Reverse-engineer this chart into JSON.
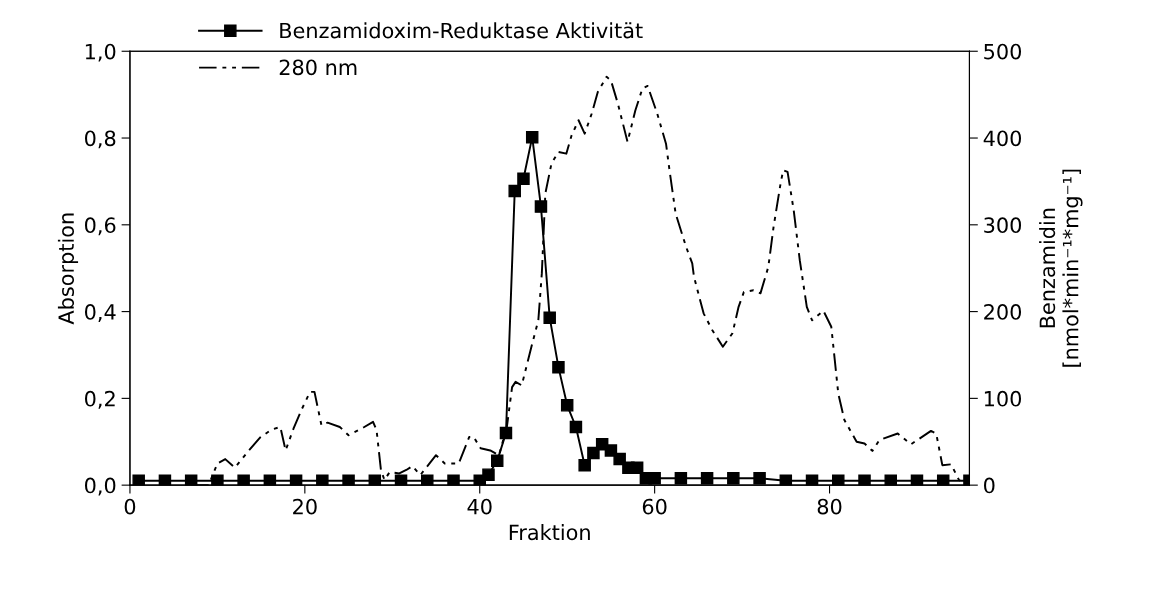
{
  "chart_data": {
    "type": "line",
    "xlabel": "Fraktion",
    "ylabel": "Absorption",
    "y2label": "Benzamidin\n[nmol*min⁻¹*mg⁻¹]",
    "xlim": [
      0,
      96
    ],
    "xticks": [
      0,
      20,
      40,
      60,
      80
    ],
    "ylim": [
      0,
      1
    ],
    "yticks": [
      {
        "value": 0,
        "label": "0,0"
      },
      {
        "value": 0.2,
        "label": "0,2"
      },
      {
        "value": 0.4,
        "label": "0,4"
      },
      {
        "value": 0.6,
        "label": "0,6"
      },
      {
        "value": 0.8,
        "label": "0,8"
      },
      {
        "value": 1,
        "label": "1,0"
      }
    ],
    "y2lim": [
      0,
      500
    ],
    "y2ticks": [
      0,
      100,
      200,
      300,
      400,
      500
    ],
    "grid": false,
    "legend": "top left",
    "series": [
      {
        "name": "Benzamidoxim-Reduktase Aktivität",
        "color": "#000000",
        "axis": "y2",
        "marker": "square",
        "line_style": "solid",
        "x": [
          1,
          4,
          7,
          10,
          13,
          16,
          19,
          22,
          25,
          28,
          31,
          34,
          37,
          40,
          41,
          42,
          43,
          44,
          45,
          46,
          47,
          48,
          49,
          50,
          51,
          52,
          53,
          54,
          55,
          56,
          57,
          58,
          59,
          60,
          63,
          66,
          69,
          72,
          75,
          78,
          81,
          84,
          87,
          90,
          93,
          96
        ],
        "values": [
          5,
          5,
          5,
          5,
          5,
          5,
          5,
          5,
          5,
          5,
          5,
          5,
          5,
          5,
          12,
          28,
          60,
          339,
          353,
          401,
          321,
          193,
          136,
          92,
          67,
          23,
          37,
          47,
          40,
          30,
          20,
          20,
          8,
          8,
          8,
          8,
          8,
          8,
          5,
          5,
          5,
          5,
          5,
          5,
          5,
          5
        ]
      },
      {
        "name": "280 nm",
        "color": "#000000",
        "axis": "y",
        "marker": "none",
        "line_style": "dashed",
        "x": [
          7,
          9,
          10,
          10.9,
          12,
          13.6,
          14.9,
          16.2,
          17.2,
          17.8,
          18.7,
          19.6,
          20.6,
          21.1,
          21.9,
          22.6,
          24,
          25,
          26.8,
          27.8,
          28.2,
          28.7,
          29.1,
          29.7,
          30.8,
          31.6,
          32.3,
          33.2,
          35,
          36,
          37.6,
          38.8,
          39.3,
          40.1,
          41.2,
          42.2,
          43.1,
          43.7,
          44.1,
          44.8,
          46,
          46.7,
          47.1,
          47.5,
          48.2,
          49,
          49.9,
          50.5,
          51.3,
          52,
          52.8,
          53.5,
          54.5,
          55,
          55.8,
          56.9,
          57.8,
          58.6,
          59.2,
          60.3,
          61.3,
          61.7,
          62.4,
          63.6,
          64.3,
          64.5,
          65.6,
          66.6,
          67.8,
          68.9,
          69.6,
          70.2,
          71.3,
          72.1,
          73,
          73.6,
          74.4,
          74.7,
          75.2,
          75.9,
          76.6,
          77.4,
          78,
          79.3,
          80.2,
          80.6,
          81,
          81.7,
          83.1,
          84,
          84.9,
          85.7,
          87.8,
          89.3,
          91.6,
          92.2,
          92.9,
          93.9,
          94.8,
          95.4
        ],
        "values": [
          0,
          0,
          0.05,
          0.06,
          0.04,
          0.08,
          0.11,
          0.128,
          0.134,
          0.08,
          0.13,
          0.173,
          0.215,
          0.215,
          0.138,
          0.144,
          0.134,
          0.115,
          0.134,
          0.146,
          0.127,
          0.035,
          0.012,
          0.03,
          0.027,
          0.035,
          0.044,
          0.023,
          0.069,
          0.05,
          0.05,
          0.111,
          0.111,
          0.085,
          0.08,
          0.069,
          0.134,
          0.226,
          0.238,
          0.23,
          0.326,
          0.38,
          0.488,
          0.672,
          0.741,
          0.768,
          0.764,
          0.806,
          0.841,
          0.81,
          0.856,
          0.906,
          0.941,
          0.933,
          0.879,
          0.791,
          0.864,
          0.914,
          0.92,
          0.856,
          0.787,
          0.726,
          0.626,
          0.549,
          0.511,
          0.48,
          0.396,
          0.357,
          0.319,
          0.35,
          0.411,
          0.445,
          0.449,
          0.442,
          0.503,
          0.595,
          0.695,
          0.726,
          0.722,
          0.634,
          0.518,
          0.411,
          0.38,
          0.402,
          0.365,
          0.288,
          0.211,
          0.15,
          0.1,
          0.096,
          0.079,
          0.104,
          0.119,
          0.094,
          0.125,
          0.119,
          0.046,
          0.048,
          0.012,
          0.004
        ]
      }
    ]
  }
}
